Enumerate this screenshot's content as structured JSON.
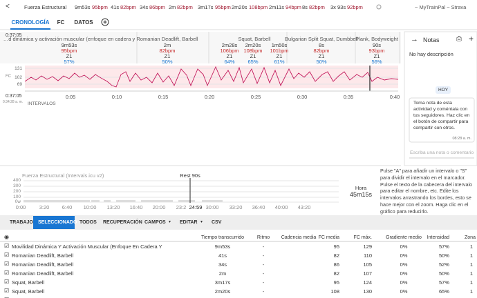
{
  "topbar": {
    "back": "<",
    "title": "Fuerza Estructural",
    "segments": [
      {
        "time": "9m53s",
        "bpm": "95bpm"
      },
      {
        "time": "41s",
        "bpm": "82bpm"
      },
      {
        "time": "34s",
        "bpm": "86bpm"
      },
      {
        "time": "2m",
        "bpm": "82bpm"
      },
      {
        "time": "3m17s",
        "bpm": "95bpm"
      },
      {
        "time": "2m20s",
        "bpm": "108bpm"
      },
      {
        "time": "2m11s",
        "bpm": "94bpm"
      },
      {
        "time": "8s",
        "bpm": "82bpm"
      },
      {
        "count": "3x",
        "time": "93s",
        "bpm": "92bpm"
      }
    ],
    "links": "~ MyTrainPal ~ Strava"
  },
  "tabs": [
    "CRONOLOGÍA",
    "FC",
    "DATOS"
  ],
  "timeline": {
    "start": "0:37:05",
    "bottom_time": "0:37:05",
    "clock": "0:34:28 a. m.",
    "hr_label": "FC",
    "hr_ticks": [
      "131",
      "102",
      "69"
    ],
    "time_ticks": [
      "0:05",
      "0:10",
      "0:15",
      "0:20",
      "0:25",
      "0:30",
      "0:35",
      "0:40"
    ],
    "intervals_label": "INTERVALOS",
    "headers": [
      {
        "name": "…d dinámica y activación muscular (enfoque en cadera y",
        "cols": [
          {
            "time": "9m53s",
            "bpm": "95bpm",
            "zone": "Z1",
            "pct": "57%"
          }
        ]
      },
      {
        "name": "Romanian Deadlift, Barbell",
        "cols": [
          {
            "time": "2m",
            "bpm": "82bpm",
            "zone": "Z1",
            "pct": "50%"
          }
        ]
      },
      {
        "name": "Squat, Barbell",
        "cols": [
          {
            "time": "2m28s",
            "bpm": "106bpm",
            "zone": "Z1",
            "pct": "64%"
          },
          {
            "time": "2m20s",
            "bpm": "108bpm",
            "zone": "Z1",
            "pct": "65%"
          },
          {
            "time": "1m50s",
            "bpm": "101bpm",
            "zone": "Z1",
            "pct": "61%"
          }
        ]
      },
      {
        "name": "Bulgarian Split Squat, Dumbbell",
        "cols": [
          {
            "time": "8s",
            "bpm": "82bpm",
            "zone": "Z1",
            "pct": "50%"
          }
        ]
      },
      {
        "name": "Plank, Bodyweight",
        "cols": [
          {
            "time": "90s",
            "bpm": "93bpm",
            "zone": "Z1",
            "pct": "56%"
          }
        ]
      }
    ]
  },
  "notes": {
    "title": "Notas",
    "description": "No hay descripción",
    "day": "HOY",
    "message": "Toma nota de esta actividad y coméntala con tus seguidores. Haz clic en el botón de compartir para compartir con otros.",
    "message_time": "08:28 a. m.",
    "input_placeholder": "Escriba una nota o comentario"
  },
  "interval_chart": {
    "title": "Fuerza Estructural (Intervals.icu v2)",
    "marker": "Rest 90s",
    "y_ticks": [
      "400",
      "300",
      "200",
      "100",
      "0w"
    ],
    "x_ticks": [
      "0:00",
      "3:20",
      "6:40",
      "10:00",
      "13:20",
      "16:40",
      "20:00",
      "23:2",
      "24:59",
      "30:00",
      "33:20",
      "36:40",
      "40:00",
      "43:20"
    ],
    "side_label": "Hora",
    "side_value": "45m15s",
    "help": "Pulse \"A\" para añadir un intervalo o \"S\" para dividir el intervalo en el marcador. Pulse el texto de la cabecera del intervalo para editar el nombre, etc. Edite los intervalos arrastrando los bordes, esto se hace mejor con el zoom. Haga clic en el gráfico para reducirlo."
  },
  "toolbar": [
    "TRABAJO",
    "SELECCIONADO",
    "TODOS",
    "RECUPERACIÓN",
    "CAMPOS",
    "EDITAR",
    "CSV"
  ],
  "table": {
    "headers": {
      "time": "Tiempo transcurrido",
      "pace": "Ritmo",
      "cadence": "Cadencia media",
      "hr_avg": "FC media",
      "hr_max": "FC máx.",
      "gradient": "Gradiente medio",
      "intensity": "Intensidad",
      "zone": "Zona"
    },
    "rows": [
      {
        "name": "Movilidad Dinámica Y Activación Muscular (Enfoque En Cadera Y",
        "time": "9m53s",
        "pace": "-",
        "hr_avg": "95",
        "hr_max": "129",
        "gradient": "0%",
        "intensity": "57%",
        "zone": "1"
      },
      {
        "name": "Romanian Deadlift, Barbell",
        "time": "41s",
        "pace": "-",
        "hr_avg": "82",
        "hr_max": "110",
        "gradient": "0%",
        "intensity": "50%",
        "zone": "1"
      },
      {
        "name": "Romanian Deadlift, Barbell",
        "time": "34s",
        "pace": "-",
        "hr_avg": "86",
        "hr_max": "105",
        "gradient": "0%",
        "intensity": "52%",
        "zone": "1"
      },
      {
        "name": "Romanian Deadlift, Barbell",
        "time": "2m",
        "pace": "-",
        "hr_avg": "82",
        "hr_max": "107",
        "gradient": "0%",
        "intensity": "50%",
        "zone": "1"
      },
      {
        "name": "Squat, Barbell",
        "time": "3m17s",
        "pace": "-",
        "hr_avg": "95",
        "hr_max": "124",
        "gradient": "0%",
        "intensity": "57%",
        "zone": "1"
      },
      {
        "name": "Squat, Barbell",
        "time": "2m20s",
        "pace": "-",
        "hr_avg": "108",
        "hr_max": "130",
        "gradient": "0%",
        "intensity": "65%",
        "zone": "1"
      },
      {
        "name": "Bulgarian Split Squat, Dumbbell"
      }
    ]
  }
}
